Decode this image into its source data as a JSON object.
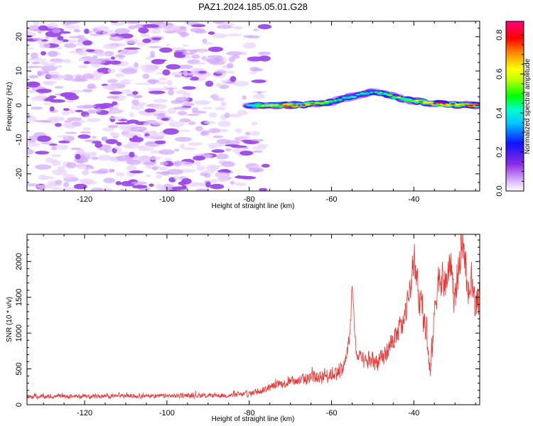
{
  "figure_title": "PAZ1.2024.185.05.01.G28",
  "colors": {
    "snr_line": "#ee3333",
    "frame": "#000000",
    "background": "#ffffff"
  },
  "chart_data": [
    {
      "type": "heatmap",
      "title": "",
      "xlabel": "Height of straight line (km)",
      "ylabel": "Frequency (Hz)",
      "xlim": [
        -134,
        -24
      ],
      "ylim": [
        -25,
        24.5
      ],
      "xticks": [
        -120,
        -100,
        -80,
        -60,
        -40
      ],
      "yticks": [
        -20,
        -10,
        0,
        10,
        20
      ],
      "grid": false,
      "ridge": {
        "description": "main spectral ridge",
        "x": [
          -80,
          -75,
          -70,
          -65,
          -60,
          -55,
          -50,
          -47,
          -45,
          -40,
          -35,
          -30,
          -25
        ],
        "y": [
          0,
          0,
          0,
          0.3,
          1,
          2.5,
          4,
          3.5,
          2.5,
          1.2,
          0.5,
          0.2,
          0
        ],
        "amplitude": [
          0.45,
          0.7,
          0.85,
          0.75,
          0.5,
          0.45,
          0.45,
          0.5,
          0.55,
          0.65,
          0.75,
          0.8,
          0.85
        ]
      },
      "noise_region_x": [
        -134,
        -76
      ],
      "colorbar": {
        "label": "Normalized spectral amplitude",
        "range": [
          0.0,
          0.87
        ],
        "ticks": [
          0.0,
          0.2,
          0.4,
          0.6,
          0.8
        ],
        "tick_labels": [
          "0.0",
          "0.2",
          "0.4",
          "0.6",
          "0.8"
        ],
        "placement": "right"
      }
    },
    {
      "type": "line",
      "title": "",
      "xlabel": "Height of straight line (km)",
      "ylabel": "SNR (10 * v/v)",
      "xlim": [
        -134,
        -24
      ],
      "ylim": [
        0,
        2380
      ],
      "xticks": [
        -120,
        -100,
        -80,
        -60,
        -40
      ],
      "yticks": [
        0,
        500,
        1000,
        1500,
        2000
      ],
      "grid": false,
      "series": [
        {
          "x": [
            -134,
            -125,
            -115,
            -105,
            -95,
            -85,
            -80,
            -77,
            -74,
            -70,
            -65,
            -60,
            -57,
            -55.5,
            -55,
            -54,
            -52,
            -50,
            -48,
            -45,
            -42,
            -40,
            -39,
            -37,
            -36,
            -35,
            -34,
            -32,
            -31,
            -30,
            -29,
            -28,
            -27,
            -26,
            -25,
            -24
          ],
          "y": [
            110,
            115,
            120,
            120,
            125,
            130,
            150,
            200,
            260,
            320,
            370,
            430,
            500,
            1000,
            1650,
            700,
            580,
            620,
            600,
            900,
            1200,
            2000,
            1600,
            1000,
            400,
            1300,
            1800,
            1700,
            2000,
            1400,
            1900,
            2350,
            1500,
            1700,
            1400,
            1600
          ],
          "noise_amplitude": [
            40,
            40,
            40,
            40,
            45,
            45,
            60,
            70,
            80,
            100,
            130,
            150,
            160,
            150,
            100,
            150,
            170,
            180,
            180,
            220,
            260,
            300,
            300,
            300,
            250,
            300,
            350,
            350,
            350,
            350,
            350,
            300,
            350,
            350,
            350,
            350
          ]
        }
      ]
    }
  ]
}
